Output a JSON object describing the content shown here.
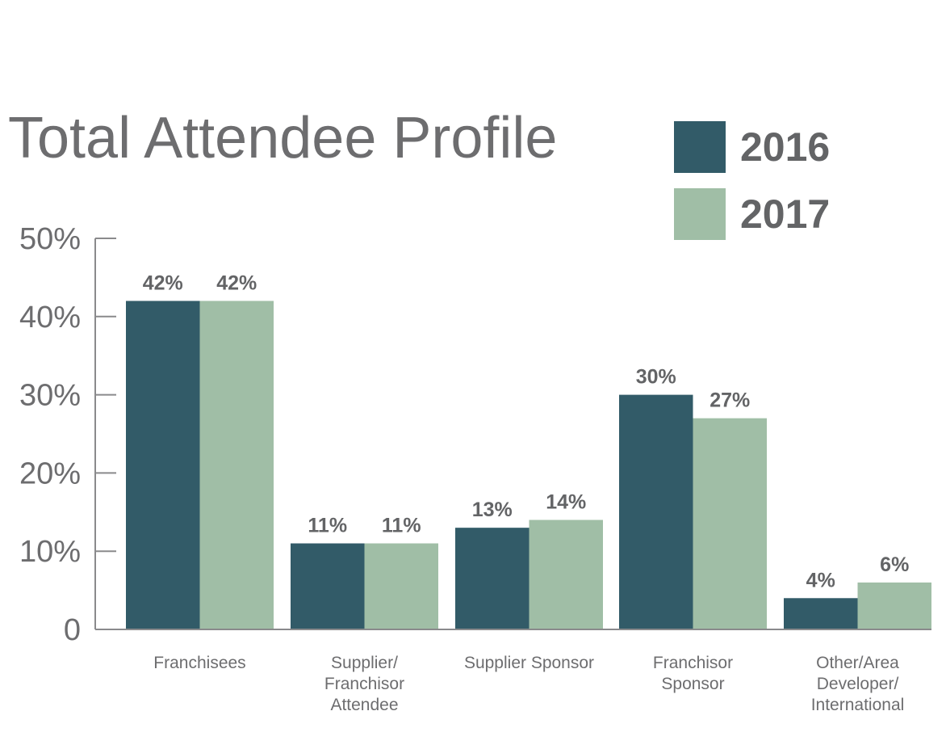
{
  "chart_data": {
    "type": "bar",
    "title": "Total Attendee Profile",
    "categories": [
      [
        "Franchisees"
      ],
      [
        "Supplier/",
        "Franchisor",
        "Attendee"
      ],
      [
        "Supplier Sponsor"
      ],
      [
        "Franchisor",
        "Sponsor"
      ],
      [
        "Other/Area",
        "Developer/",
        "International"
      ]
    ],
    "series": [
      {
        "name": "2016",
        "color": "#325b68",
        "values": [
          42,
          11,
          13,
          30,
          4
        ],
        "labels": [
          "42%",
          "11%",
          "13%",
          "30%",
          "4%"
        ]
      },
      {
        "name": "2017",
        "color": "#a0bea6",
        "values": [
          42,
          11,
          14,
          27,
          6
        ],
        "labels": [
          "42%",
          "11%",
          "14%",
          "27%",
          "6%"
        ]
      }
    ],
    "ylim": [
      0,
      50
    ],
    "yticks": [
      {
        "value": 0,
        "label": "0"
      },
      {
        "value": 10,
        "label": "10%"
      },
      {
        "value": 20,
        "label": "20%"
      },
      {
        "value": 30,
        "label": "30%"
      },
      {
        "value": 40,
        "label": "40%"
      },
      {
        "value": 50,
        "label": "50%"
      }
    ],
    "legend_position": "top-right",
    "grid": false,
    "xlabel": "",
    "ylabel": ""
  }
}
